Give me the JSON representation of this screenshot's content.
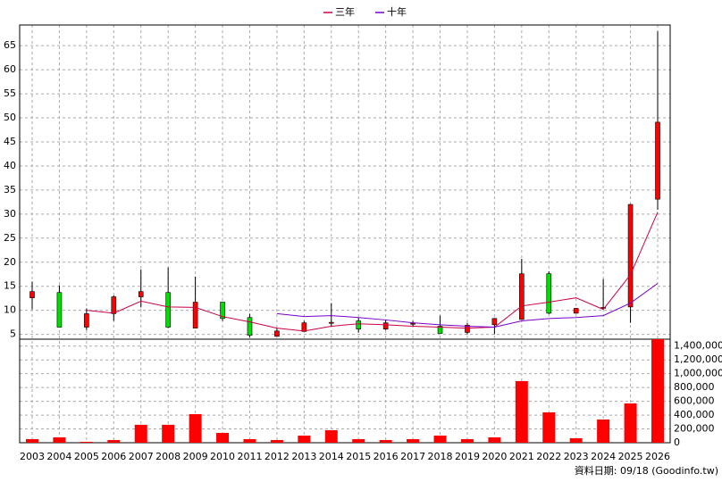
{
  "chart_data": [
    {
      "type": "candlestick",
      "categories": [
        "2003",
        "2004",
        "2005",
        "2006",
        "2007",
        "2008",
        "2009",
        "2010",
        "2011",
        "2012",
        "2013",
        "2014",
        "2015",
        "2016",
        "2017",
        "2018",
        "2019",
        "2020",
        "2021",
        "2022",
        "2023",
        "2024",
        "2025",
        "2026"
      ],
      "open": [
        12.6,
        13.7,
        6.5,
        9.3,
        12.8,
        13.7,
        6.3,
        11.7,
        8.5,
        4.6,
        5.6,
        7.3,
        7.8,
        6.1,
        7.1,
        6.7,
        5.4,
        7.0,
        8.1,
        17.6,
        9.4,
        10.5,
        10.7,
        33.1
      ],
      "high": [
        16,
        15.2,
        10.4,
        13.1,
        18.5,
        18.9,
        17,
        11.7,
        9.3,
        6.3,
        7.8,
        11.5,
        8.5,
        8.1,
        7.8,
        8.9,
        7.4,
        8.4,
        20.7,
        18.1,
        10.5,
        16.5,
        32.1,
        68
      ],
      "low": [
        10.2,
        6.5,
        5.9,
        7.8,
        10.6,
        6.3,
        6.3,
        7.8,
        4.4,
        4.6,
        5.6,
        6.7,
        5.4,
        5.9,
        6.7,
        5.2,
        5,
        5,
        8.1,
        9.2,
        9.3,
        10.2,
        7.4,
        30.9
      ],
      "close": [
        13.9,
        6.5,
        9.3,
        12.8,
        13.9,
        6.5,
        11.7,
        8.3,
        4.8,
        5.7,
        7.4,
        7.5,
        6.1,
        7.4,
        7.3,
        5.2,
        6.9,
        8.3,
        17.6,
        9.4,
        10.4,
        10.6,
        32,
        49.1
      ],
      "up_color": "#ff0000",
      "down_color": "#00dd00",
      "series": [
        {
          "name": "三年",
          "color": "#cc0044",
          "values": [
            null,
            null,
            10.0,
            9.4,
            11.9,
            10.7,
            10.6,
            8.7,
            7.6,
            6.3,
            5.7,
            6.7,
            7.2,
            7.0,
            6.7,
            6.5,
            6.3,
            6.5,
            10.9,
            11.7,
            12.6,
            10.2,
            17.4,
            30.4
          ]
        },
        {
          "name": "十年",
          "color": "#7700cc",
          "values": [
            null,
            null,
            null,
            null,
            null,
            null,
            null,
            null,
            null,
            9.3,
            8.7,
            8.9,
            8.5,
            8.0,
            7.4,
            7.0,
            6.7,
            6.5,
            7.8,
            8.3,
            8.5,
            8.9,
            11.5,
            15.6
          ]
        }
      ],
      "ylim": [
        4,
        69.3
      ],
      "yticks": [
        5,
        10,
        15,
        20,
        25,
        30,
        35,
        40,
        45,
        50,
        55,
        60,
        65
      ],
      "grid": true
    },
    {
      "type": "bar",
      "color": "#ff0000",
      "values": [
        52000,
        78000,
        13000,
        39000,
        260000,
        260000,
        414000,
        142000,
        52000,
        39000,
        103000,
        181000,
        52000,
        39000,
        52000,
        103000,
        52000,
        78000,
        893000,
        440000,
        65000,
        336000,
        570000,
        1500000
      ],
      "ylim": [
        0,
        1500000
      ],
      "yticks": [
        {
          "value": 0,
          "label": "0"
        },
        {
          "value": 200000,
          "label": "200,000"
        },
        {
          "value": 400000,
          "label": "400,000"
        },
        {
          "value": 600000,
          "label": "600,000"
        },
        {
          "value": 800000,
          "label": "800,000"
        },
        {
          "value": 1000000,
          "label": "1,000,000"
        },
        {
          "value": 1200000,
          "label": "1,200,000"
        },
        {
          "value": 1400000,
          "label": "1,400,000"
        }
      ],
      "grid": true
    }
  ],
  "footer": "資料日期: 09/18 (Goodinfo.tw)"
}
